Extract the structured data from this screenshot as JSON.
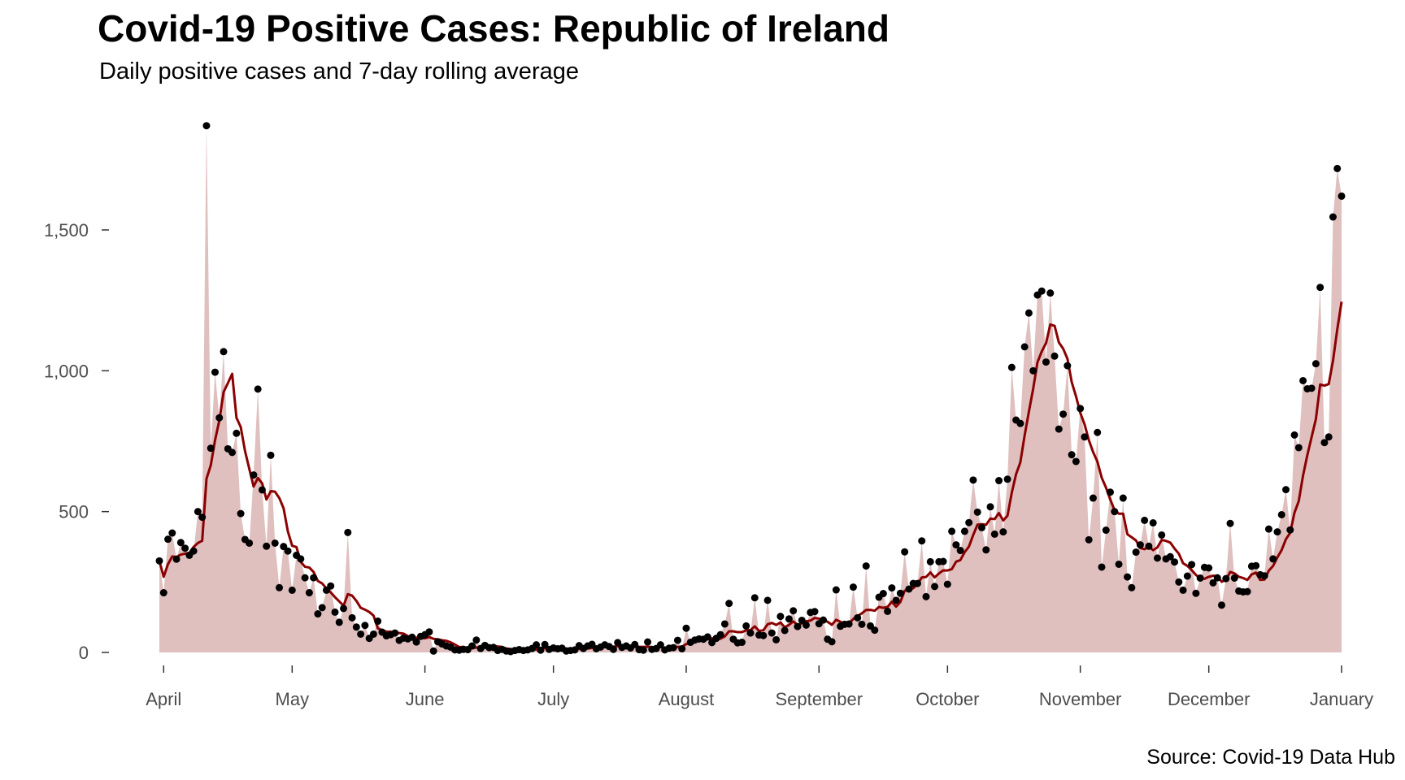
{
  "chart_data": {
    "type": "area",
    "title": "Covid-19 Positive Cases: Republic of Ireland",
    "subtitle": "Daily positive cases and 7-day rolling average",
    "caption": "Source: Covid-19 Data Hub",
    "xlabel": "",
    "ylabel": "",
    "x_start": "2020-03-31",
    "xlim": [
      "2020-03-31",
      "2021-01-01"
    ],
    "ylim": [
      0,
      1870
    ],
    "y_ticks": [
      0,
      500,
      1000,
      1500
    ],
    "y_tick_labels": [
      "0",
      "500",
      "1,000",
      "1,500"
    ],
    "x_ticks": [
      "2020-04-01",
      "2020-05-01",
      "2020-06-01",
      "2020-07-01",
      "2020-08-01",
      "2020-09-01",
      "2020-10-01",
      "2020-11-01",
      "2020-12-01",
      "2021-01-01"
    ],
    "x_tick_labels": [
      "April",
      "May",
      "June",
      "July",
      "August",
      "September",
      "October",
      "November",
      "December",
      "January"
    ],
    "grid": false,
    "legend": "none",
    "colors": {
      "area": "#e0bfbf",
      "line": "#8b0000",
      "point": "#000000"
    },
    "series": [
      {
        "values": [
          325,
          212,
          402,
          424,
          331,
          390,
          370,
          345,
          360,
          500,
          480,
          1870,
          725,
          995,
          833,
          1068,
          723,
          710,
          778,
          493,
          401,
          388,
          630,
          935,
          577,
          377,
          700,
          388,
          230,
          376,
          360,
          221,
          345,
          332,
          265,
          212,
          265,
          137,
          159,
          221,
          236,
          143,
          107,
          156,
          426,
          123,
          90,
          65,
          96,
          50,
          65,
          111,
          72,
          59,
          63,
          69,
          43,
          51,
          48,
          54,
          37,
          57,
          63,
          73,
          5,
          38,
          30,
          23,
          19,
          9,
          8,
          11,
          10,
          23,
          44,
          14,
          25,
          17,
          18,
          7,
          11,
          5,
          3,
          7,
          10,
          7,
          9,
          14,
          27,
          8,
          28,
          11,
          16,
          13,
          15,
          5,
          7,
          9,
          24,
          14,
          23,
          29,
          13,
          19,
          27,
          21,
          11,
          35,
          18,
          23,
          16,
          28,
          10,
          8,
          37,
          11,
          14,
          27,
          9,
          15,
          17,
          43,
          13,
          86,
          36,
          44,
          48,
          47,
          55,
          35,
          50,
          63,
          101,
          174,
          47,
          34,
          36,
          94,
          69,
          194,
          62,
          60,
          185,
          69,
          45,
          128,
          78,
          119,
          148,
          92,
          114,
          97,
          142,
          145,
          102,
          115,
          47,
          38,
          222,
          93,
          100,
          101,
          232,
          123,
          100,
          307,
          94,
          79,
          196,
          209,
          146,
          229,
          185,
          210,
          357,
          225,
          245,
          245,
          396,
          198,
          322,
          234,
          322,
          323,
          242,
          430,
          382,
          362,
          430,
          461,
          612,
          498,
          443,
          364,
          517,
          420,
          610,
          428,
          615,
          1012,
          825,
          813,
          1085,
          1205,
          1000,
          1269,
          1283,
          1031,
          1276,
          1052,
          793,
          846,
          1018,
          702,
          678,
          866,
          765,
          400,
          548,
          781,
          303,
          434,
          569,
          500,
          313,
          548,
          268,
          230,
          356,
          382,
          469,
          377,
          460,
          335,
          417,
          332,
          340,
          321,
          250,
          221,
          271,
          312,
          210,
          264,
          302,
          300,
          247,
          265,
          168,
          262,
          458,
          264,
          218,
          215,
          216,
          306,
          308,
          276,
          272,
          438,
          332,
          428,
          489,
          578,
          435,
          772,
          727,
          965,
          936,
          938,
          1025,
          1296,
          745,
          765,
          1546,
          1718,
          1620
        ]
      }
    ]
  }
}
